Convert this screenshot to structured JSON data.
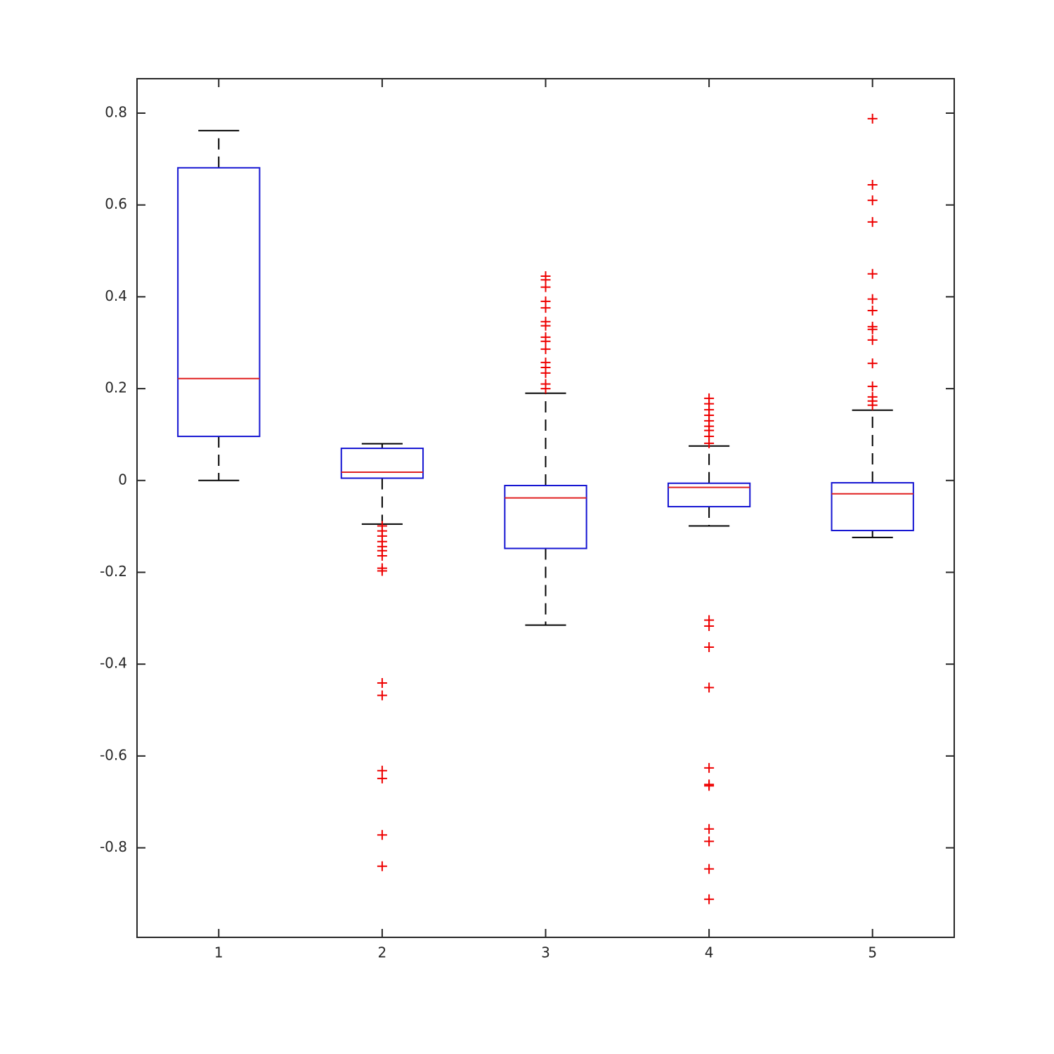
{
  "chart_data": {
    "type": "box",
    "categories": [
      "1",
      "2",
      "3",
      "4",
      "5"
    ],
    "boxes": [
      {
        "whisker_low": 0,
        "q1": 0.096,
        "median": 0.222,
        "q3": 0.681,
        "whisker_high": 0.762,
        "outliers": []
      },
      {
        "whisker_low": -0.095,
        "q1": 0.005,
        "median": 0.018,
        "q3": 0.07,
        "whisker_high": 0.08,
        "outliers": [
          -0.099,
          -0.11,
          -0.121,
          -0.133,
          -0.144,
          -0.153,
          -0.164,
          -0.191,
          -0.197,
          -0.441,
          -0.468,
          -0.632,
          -0.649,
          -0.772,
          -0.84
        ]
      },
      {
        "whisker_low": -0.315,
        "q1": -0.148,
        "median": -0.038,
        "q3": -0.011,
        "whisker_high": 0.19,
        "outliers": [
          0.445,
          0.437,
          0.421,
          0.39,
          0.376,
          0.346,
          0.337,
          0.312,
          0.303,
          0.286,
          0.257,
          0.246,
          0.234,
          0.21,
          0.2
        ]
      },
      {
        "whisker_low": -0.099,
        "q1": -0.057,
        "median": -0.015,
        "q3": -0.006,
        "whisker_high": 0.075,
        "outliers": [
          0.179,
          0.167,
          0.154,
          0.142,
          0.13,
          0.118,
          0.109,
          0.096,
          0.081,
          -0.304,
          -0.317,
          -0.363,
          -0.451,
          -0.626,
          -0.662,
          -0.665,
          -0.759,
          -0.786,
          -0.846,
          -0.912
        ]
      },
      {
        "whisker_low": -0.124,
        "q1": -0.109,
        "median": -0.029,
        "q3": -0.005,
        "whisker_high": 0.153,
        "outliers": [
          0.788,
          0.644,
          0.61,
          0.563,
          0.45,
          0.395,
          0.37,
          0.335,
          0.329,
          0.306,
          0.255,
          0.205,
          0.182,
          0.173,
          0.164
        ]
      }
    ],
    "box_color": "#1414d2",
    "median_color": "#e02020",
    "whisker_color": "#000000",
    "outlier_color": "#ee0000",
    "ylim": [
      -0.995,
      0.875
    ],
    "yticks": [
      -0.8,
      -0.6,
      -0.4,
      -0.2,
      0,
      0.2,
      0.4,
      0.6,
      0.8
    ]
  }
}
